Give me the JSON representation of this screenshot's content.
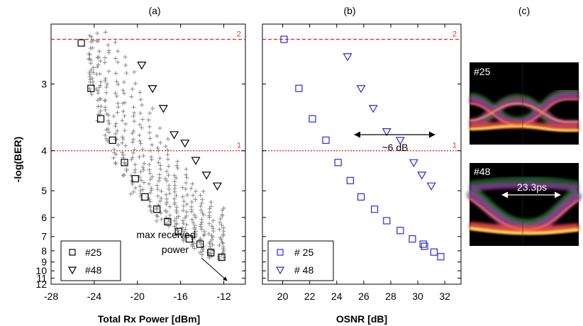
{
  "panel_labels": [
    "(a)",
    "(b)",
    "(c)"
  ],
  "y_axis": {
    "label": "-log(BER)",
    "ticks": [
      "3",
      "4",
      "5",
      "6",
      "7",
      "8",
      "9",
      "10",
      "11",
      "12"
    ],
    "range_top": 2.45,
    "range_bottom": 12,
    "scale": "1/y (reciprocal, inverted)"
  },
  "reference_lines": [
    {
      "label": "2",
      "value": 2.57,
      "style": "dashed",
      "color": "#e8302a"
    },
    {
      "label": "1",
      "value": 4.0,
      "style": "dotted",
      "color": "#e8302a"
    }
  ],
  "chart_data": [
    {
      "type": "scatter",
      "panel": "(a)",
      "title": "",
      "xlabel": "Total Rx Power [dBm]",
      "ylabel": "-log(BER)",
      "xlim": [
        -28,
        -10
      ],
      "x_ticks": [
        "-28",
        "-24",
        "-20",
        "-16",
        "-12"
      ],
      "legend_position": "bottom-left",
      "series": [
        {
          "name": "#25",
          "marker": "square",
          "color": "#000000",
          "x": [
            -25.2,
            -24.3,
            -23.4,
            -22.3,
            -21.2,
            -20.2,
            -19.3,
            -18.2,
            -17.2,
            -16.2,
            -15.2,
            -14.2,
            -13.2,
            -12.2
          ],
          "y": [
            2.6,
            3.05,
            3.45,
            3.8,
            4.25,
            4.65,
            5.2,
            5.65,
            6.2,
            6.7,
            7.15,
            7.5,
            8.15,
            8.55
          ]
        },
        {
          "name": "#48",
          "marker": "triangle-down",
          "color": "#000000",
          "x": [
            -19.6,
            -18.6,
            -17.6,
            -16.6,
            -15.6,
            -14.6,
            -13.6,
            -12.6
          ],
          "y": [
            2.8,
            3.05,
            3.3,
            3.7,
            3.85,
            4.2,
            4.55,
            4.85
          ]
        },
        {
          "name": "",
          "marker": "plus",
          "color": "#8a8a8a",
          "columns_x": [
            -24.3,
            -23.6,
            -22.8,
            -22.0,
            -21.2,
            -20.4,
            -19.6,
            -18.8,
            -18.0,
            -17.2,
            -16.4,
            -15.6,
            -14.8,
            -14.0,
            -13.2,
            -12.2
          ],
          "columns_y_range": [
            [
              2.55,
              3.1
            ],
            [
              2.55,
              3.45
            ],
            [
              2.55,
              3.85
            ],
            [
              2.6,
              4.3
            ],
            [
              2.75,
              4.6
            ],
            [
              2.9,
              5.1
            ],
            [
              3.1,
              5.3
            ],
            [
              3.3,
              5.8
            ],
            [
              3.6,
              6.2
            ],
            [
              3.8,
              6.4
            ],
            [
              4.2,
              6.9
            ],
            [
              4.4,
              7.3
            ],
            [
              4.8,
              7.8
            ],
            [
              5.0,
              8.3
            ],
            [
              5.4,
              8.6
            ],
            [
              5.6,
              8.7
            ]
          ]
        }
      ],
      "annotations": [
        "max received power"
      ]
    },
    {
      "type": "scatter",
      "panel": "(b)",
      "title": "",
      "xlabel": "OSNR [dB]",
      "ylabel": "",
      "xlim": [
        18.5,
        33.2
      ],
      "x_ticks": [
        "20",
        "22",
        "24",
        "26",
        "28",
        "30",
        "32"
      ],
      "legend_position": "bottom-left",
      "series": [
        {
          "name": "# 25",
          "marker": "square",
          "color": "#2b2bd6",
          "x": [
            20.1,
            21.2,
            22.2,
            23.2,
            24.1,
            25.0,
            25.8,
            26.8,
            27.7,
            28.7,
            29.6,
            30.4,
            30.5,
            31.2,
            31.7
          ],
          "y": [
            2.57,
            3.05,
            3.45,
            3.8,
            4.25,
            4.7,
            5.2,
            5.65,
            6.15,
            6.65,
            7.15,
            7.5,
            7.65,
            8.1,
            8.5
          ]
        },
        {
          "name": "# 48",
          "marker": "triangle-down",
          "color": "#2b2bd6",
          "x": [
            24.8,
            25.8,
            26.7,
            27.7,
            28.7,
            29.7,
            30.3,
            31.0
          ],
          "y": [
            2.72,
            3.05,
            3.3,
            3.65,
            3.8,
            4.25,
            4.55,
            4.85
          ]
        }
      ],
      "annotations": [
        "~6 dB"
      ]
    }
  ],
  "eye_diagrams": [
    {
      "label": "#25",
      "annotation": ""
    },
    {
      "label": "#48",
      "annotation": "23.3ps"
    }
  ]
}
